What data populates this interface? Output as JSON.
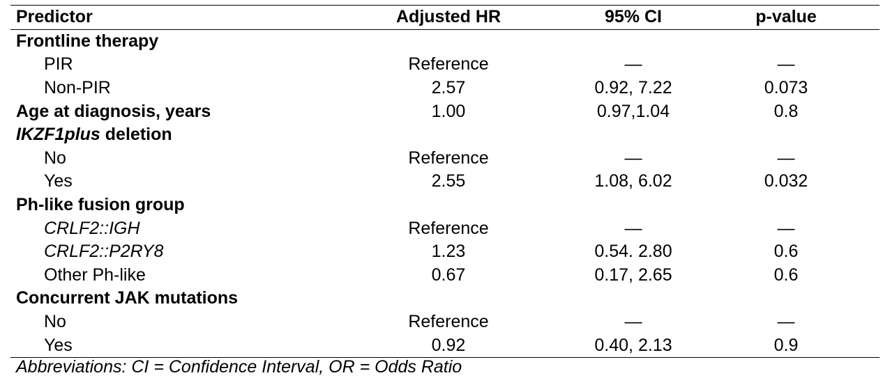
{
  "table": {
    "headers": {
      "predictor": "Predictor",
      "hr": "Adjusted HR",
      "ci": "95% CI",
      "p": "p-value"
    },
    "rows": [
      {
        "type": "group",
        "label": "Frontline therapy",
        "hr": "",
        "ci": "",
        "p": ""
      },
      {
        "type": "sub",
        "label": "PIR",
        "hr": "Reference",
        "ci": "—",
        "p": "—"
      },
      {
        "type": "sub",
        "label": "Non-PIR",
        "hr": "2.57",
        "ci": "0.92, 7.22",
        "p": "0.073"
      },
      {
        "type": "group",
        "label": "Age at diagnosis, years",
        "hr": "1.00",
        "ci": "0.97,1.04",
        "p": "0.8"
      },
      {
        "type": "group",
        "label_italic": "IKZF1plus",
        "label": " deletion",
        "hr": "",
        "ci": "",
        "p": ""
      },
      {
        "type": "sub",
        "label": "No",
        "hr": "Reference",
        "ci": "—",
        "p": "—"
      },
      {
        "type": "sub",
        "label": "Yes",
        "hr": "2.55",
        "ci": "1.08, 6.02",
        "p": "0.032"
      },
      {
        "type": "group",
        "label": "Ph-like fusion group",
        "hr": "",
        "ci": "",
        "p": ""
      },
      {
        "type": "sub",
        "label_italic": "CRLF2::IGH",
        "label": "",
        "hr": "Reference",
        "ci": "—",
        "p": "—"
      },
      {
        "type": "sub",
        "label_italic": "CRLF2::P2RY8",
        "label": "",
        "hr": "1.23",
        "ci": "0.54. 2.80",
        "p": "0.6"
      },
      {
        "type": "sub",
        "label": "Other Ph-like",
        "hr": "0.67",
        "ci": "0.17, 2.65",
        "p": "0.6"
      },
      {
        "type": "group",
        "label": "Concurrent JAK mutations",
        "hr": "",
        "ci": "",
        "p": ""
      },
      {
        "type": "sub",
        "label": "No",
        "hr": "Reference",
        "ci": "—",
        "p": "—"
      },
      {
        "type": "sub",
        "label": "Yes",
        "hr": "0.92",
        "ci": "0.40, 2.13",
        "p": "0.9"
      }
    ]
  },
  "footnote": "Abbreviations: CI = Confidence Interval, OR = Odds Ratio"
}
